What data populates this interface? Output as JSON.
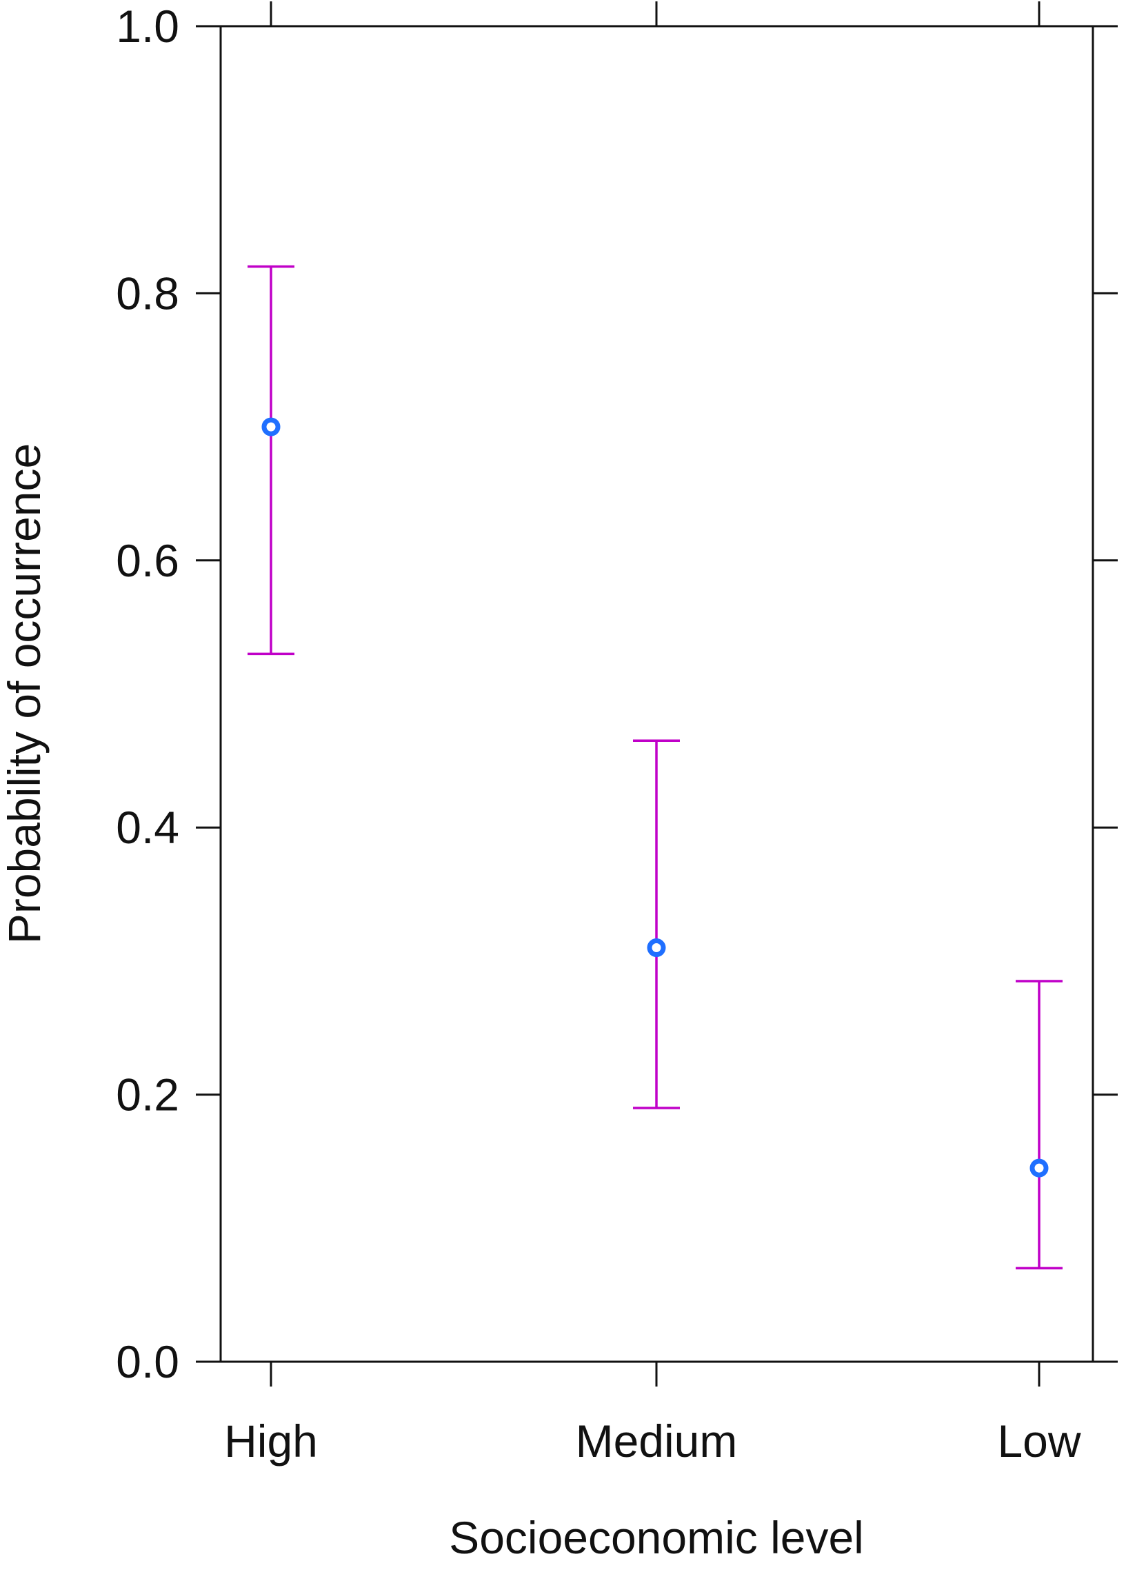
{
  "chart_data": {
    "type": "scatter",
    "title": "",
    "xlabel": "Socioeconomic level",
    "ylabel": "Probability of occurrence",
    "categories": [
      "High",
      "Medium",
      "Low"
    ],
    "series": [
      {
        "values": [
          0.7,
          0.31,
          0.145
        ],
        "lower": [
          0.53,
          0.19,
          0.07
        ],
        "upper": [
          0.82,
          0.465,
          0.285
        ]
      }
    ],
    "ylim": [
      0.0,
      1.0
    ],
    "yticks": [
      0.0,
      0.2,
      0.4,
      0.6,
      0.8,
      1.0
    ],
    "ytick_labels": [
      "0.0",
      "0.2",
      "0.4",
      "0.6",
      "0.8",
      "1.0"
    ],
    "grid": false,
    "legend": "none",
    "colors": {
      "point": "#1f6fff",
      "errorbar": "#c000c8",
      "axis": "#111111"
    }
  }
}
